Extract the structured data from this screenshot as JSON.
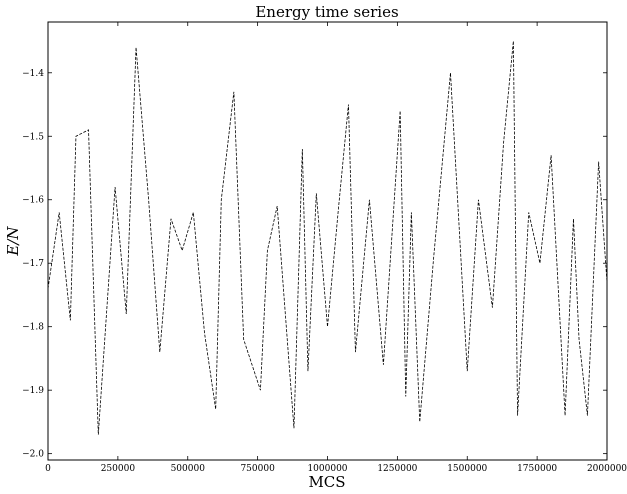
{
  "chart_data": {
    "type": "line",
    "title": "Energy time series",
    "xlabel": "MCS",
    "ylabel": "E/N",
    "xlim": [
      0,
      2000000
    ],
    "ylim": [
      -2.01,
      -1.32
    ],
    "xticks": [
      0,
      250000,
      500000,
      750000,
      1000000,
      1250000,
      1500000,
      1750000,
      2000000
    ],
    "xtick_labels": [
      "0",
      "250000",
      "500000",
      "750000",
      "1000000",
      "1250000",
      "1500000",
      "1750000",
      "2000000"
    ],
    "yticks": [
      -2.0,
      -1.9,
      -1.8,
      -1.7,
      -1.6,
      -1.5,
      -1.4
    ],
    "ytick_labels": [
      "−2.0",
      "−1.9",
      "−1.8",
      "−1.7",
      "−1.6",
      "−1.5",
      "−1.4"
    ],
    "grid": false,
    "legend": "none",
    "line_color": "#000000",
    "line_style": "dashed",
    "series": [
      {
        "x": [
          0,
          40000,
          80000,
          100000,
          145000,
          180000,
          240000,
          280000,
          315000,
          360000,
          400000,
          440000,
          480000,
          520000,
          560000,
          600000,
          620000,
          665000,
          700000,
          760000,
          785000,
          820000,
          880000,
          910000,
          930000,
          960000,
          1000000,
          1040000,
          1075000,
          1100000,
          1150000,
          1200000,
          1260000,
          1280000,
          1300000,
          1330000,
          1380000,
          1440000,
          1500000,
          1540000,
          1590000,
          1630000,
          1665000,
          1680000,
          1720000,
          1760000,
          1800000,
          1850000,
          1880000,
          1900000,
          1930000,
          1970000,
          2000000
        ],
        "y": [
          -1.74,
          -1.62,
          -1.79,
          -1.5,
          -1.49,
          -1.97,
          -1.58,
          -1.78,
          -1.36,
          -1.6,
          -1.84,
          -1.63,
          -1.68,
          -1.62,
          -1.81,
          -1.93,
          -1.6,
          -1.43,
          -1.82,
          -1.9,
          -1.68,
          -1.61,
          -1.96,
          -1.52,
          -1.87,
          -1.59,
          -1.8,
          -1.61,
          -1.45,
          -1.84,
          -1.6,
          -1.86,
          -1.46,
          -1.91,
          -1.62,
          -1.95,
          -1.69,
          -1.4,
          -1.87,
          -1.6,
          -1.77,
          -1.51,
          -1.35,
          -1.94,
          -1.62,
          -1.7,
          -1.53,
          -1.94,
          -1.63,
          -1.82,
          -1.94,
          -1.54,
          -1.73
        ]
      }
    ]
  }
}
